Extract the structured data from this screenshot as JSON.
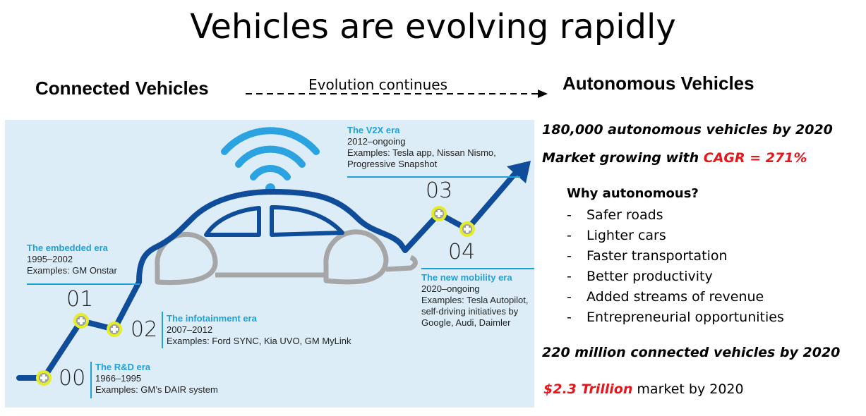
{
  "title": "Vehicles are evolving rapidly",
  "header": {
    "left": "Connected Vehicles",
    "middle": "Evolution continues",
    "right": "Autonomous Vehicles"
  },
  "eras": [
    {
      "number": "00",
      "title": "The R&D era",
      "dates": "1966–1995",
      "examples": [
        "Examples: GM’s DAIR system"
      ]
    },
    {
      "number": "01",
      "title": "The embedded era",
      "dates": "1995–2002",
      "examples": [
        "Examples: GM Onstar"
      ]
    },
    {
      "number": "02",
      "title": "The infotainment era",
      "dates": "2007–2012",
      "examples": [
        "Examples: Ford SYNC, Kia UVO, GM MyLink"
      ]
    },
    {
      "number": "03",
      "title": "The V2X era",
      "dates": "2012–ongoing",
      "examples": [
        "Examples: Tesla app, Nissan Nismo,",
        "Progressive Snapshot"
      ]
    },
    {
      "number": "04",
      "title": "The new mobility era",
      "dates": "2020–ongoing",
      "examples": [
        "Examples: Tesla Autopilot,",
        "self-driving initiatives by",
        "Google, Audi, Daimler"
      ]
    }
  ],
  "stats": {
    "autonomous_count": "180,000 autonomous vehicles by 2020",
    "market_prefix": "Market growing with ",
    "cagr": "CAGR = 271%",
    "connected_count": "220 million connected vehicles by 2020",
    "market_value": "$2.3 Trillion",
    "market_suffix": " market by 2020"
  },
  "why": {
    "title": "Why autonomous?",
    "dash": "-",
    "items": [
      "Safer roads",
      "Lighter cars",
      "Faster transportation",
      "Better productivity",
      "Added streams of revenue",
      "Entrepreneurial opportunities"
    ]
  },
  "colors": {
    "path": "#0f4c9a",
    "accent": "#1fa0d8",
    "panel": "#dcedf8",
    "wifi": "#2aa3e0",
    "node": "#e6ec28",
    "wheel": "#a6a6a6",
    "highlight": "#e8161b"
  }
}
